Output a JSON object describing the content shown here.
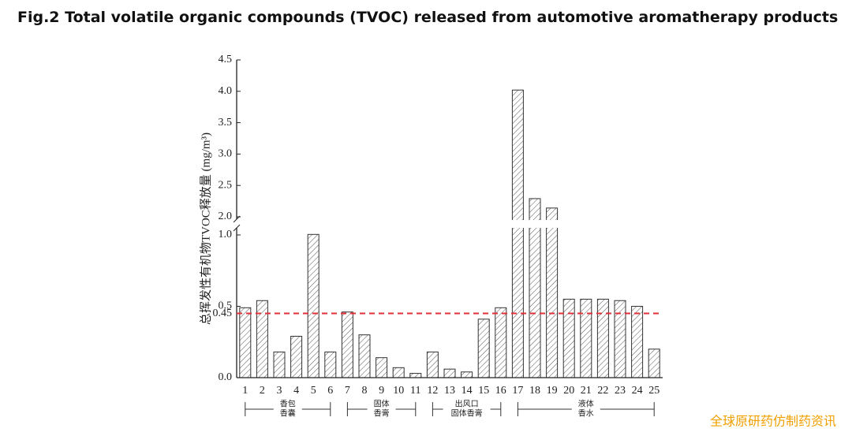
{
  "chart_data": {
    "type": "bar",
    "title": "Fig.2 Total volatile organic compounds (TVOC) released from automotive aromatherapy products",
    "y_label": "总挥发性有机物TVOC释放量 (mg/m³)",
    "categories": [
      "1",
      "2",
      "3",
      "4",
      "5",
      "6",
      "7",
      "8",
      "9",
      "10",
      "11",
      "12",
      "13",
      "14",
      "15",
      "16",
      "17",
      "18",
      "19",
      "20",
      "21",
      "22",
      "23",
      "24",
      "25"
    ],
    "values": [
      0.49,
      0.54,
      0.18,
      0.29,
      1.03,
      0.18,
      0.46,
      0.3,
      0.14,
      0.07,
      0.03,
      0.18,
      0.06,
      0.04,
      0.41,
      0.49,
      4.02,
      2.29,
      2.14,
      0.55,
      0.55,
      0.55,
      0.54,
      0.5,
      0.2
    ],
    "color": "#333333",
    "ylim": [
      0,
      4.5
    ],
    "axis_break": [
      1.0,
      2.0
    ],
    "yticks": [
      {
        "value": 0,
        "label": "0.0"
      },
      0.45,
      0.5,
      {
        "value": 1,
        "label": "1.0"
      },
      {
        "value": 2,
        "label": "2.0"
      },
      2.5,
      {
        "value": 3,
        "label": "3.0"
      },
      3.5,
      {
        "value": 4,
        "label": "4.0"
      },
      4.5
    ],
    "reference_line": {
      "value": 0.45,
      "color": "#e0303a"
    },
    "groups": [
      {
        "label": [
          "香包",
          "香囊"
        ],
        "from": "1",
        "to": "6"
      },
      {
        "label": [
          "固体",
          "香膏"
        ],
        "from": "7",
        "to": "11"
      },
      {
        "label": [
          "出风口",
          "固体香膏"
        ],
        "from": "12",
        "to": "16"
      },
      {
        "label": [
          "液体",
          "香水"
        ],
        "from": "17",
        "to": "25"
      }
    ],
    "watermark": "全球原研药仿制药资讯"
  }
}
